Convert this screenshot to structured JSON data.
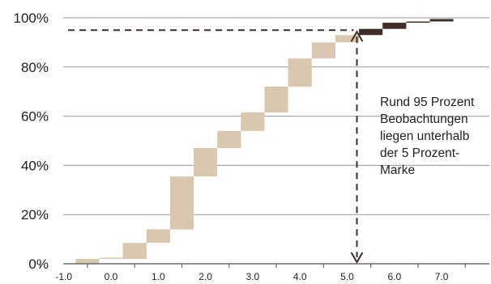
{
  "chart_data": {
    "type": "bar",
    "title": "",
    "xlabel": "",
    "ylabel": "",
    "x_ticks": [
      "-1.0",
      "0.0",
      "1.0",
      "2.0",
      "3.0",
      "4.0",
      "5.0",
      "6.0",
      "7.0"
    ],
    "y_ticks": [
      "0%",
      "20%",
      "40%",
      "60%",
      "80%",
      "100%"
    ],
    "xlim": [
      -1.25,
      7.5
    ],
    "ylim": [
      0,
      100
    ],
    "grid": "horizontal",
    "bin_width": 0.5,
    "bars": [
      {
        "x_start": -0.75,
        "from": 0.0,
        "to": 2.0,
        "group": "below"
      },
      {
        "x_start": -0.25,
        "from": 2.0,
        "to": 2.0,
        "group": "below"
      },
      {
        "x_start": 0.25,
        "from": 2.0,
        "to": 8.5,
        "group": "below"
      },
      {
        "x_start": 0.75,
        "from": 8.5,
        "to": 14.0,
        "group": "below"
      },
      {
        "x_start": 1.25,
        "from": 14.0,
        "to": 35.5,
        "group": "below"
      },
      {
        "x_start": 1.75,
        "from": 35.5,
        "to": 47.0,
        "group": "below"
      },
      {
        "x_start": 2.25,
        "from": 47.0,
        "to": 54.0,
        "group": "below"
      },
      {
        "x_start": 2.75,
        "from": 54.0,
        "to": 61.5,
        "group": "below"
      },
      {
        "x_start": 3.25,
        "from": 61.5,
        "to": 72.0,
        "group": "below"
      },
      {
        "x_start": 3.75,
        "from": 72.0,
        "to": 83.5,
        "group": "below"
      },
      {
        "x_start": 4.25,
        "from": 83.5,
        "to": 90.0,
        "group": "below"
      },
      {
        "x_start": 4.75,
        "from": 90.0,
        "to": 93.0,
        "group": "below"
      },
      {
        "x_start": 5.25,
        "from": 93.0,
        "to": 95.5,
        "group": "above"
      },
      {
        "x_start": 5.75,
        "from": 95.5,
        "to": 98.0,
        "group": "above"
      },
      {
        "x_start": 6.25,
        "from": 98.0,
        "to": 98.5,
        "group": "above"
      },
      {
        "x_start": 6.75,
        "from": 98.5,
        "to": 99.5,
        "group": "above"
      }
    ],
    "reference_x": 5.0,
    "reference_y": 95,
    "annotation": [
      "Rund 95 Prozent",
      "Beobachtungen",
      "liegen unterhalb",
      "der 5 Prozent-",
      "Marke"
    ],
    "colors": {
      "below": "#d9c7af",
      "above": "#3d2e27",
      "grid": "#9a9a9a",
      "axis": "#555555",
      "dashed": "#3d2e27"
    }
  }
}
